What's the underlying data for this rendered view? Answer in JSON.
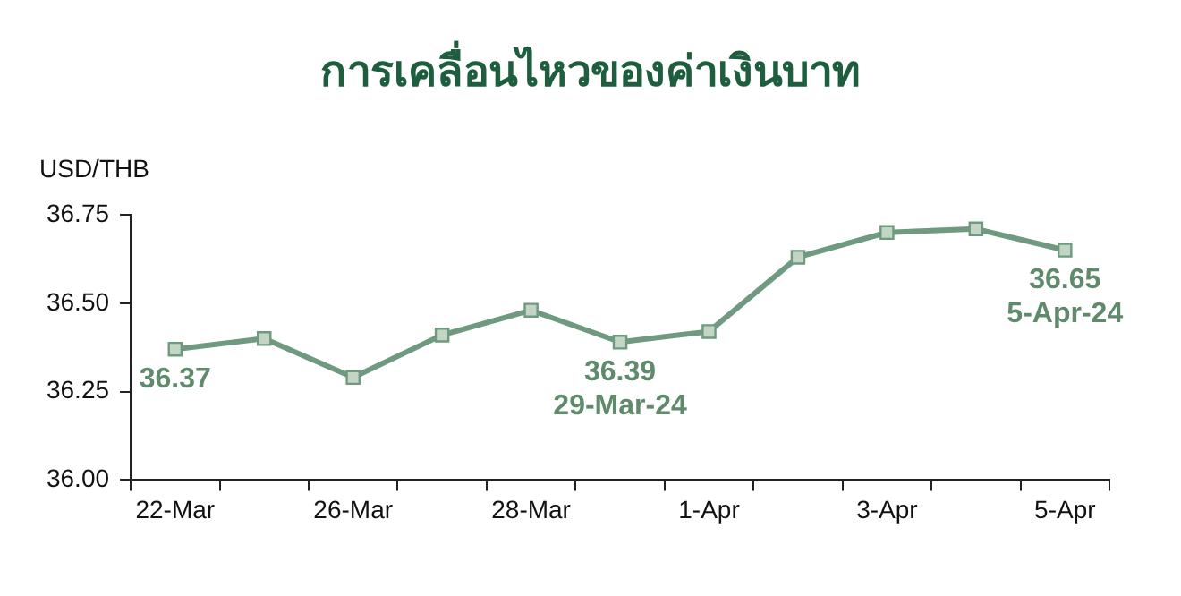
{
  "chart_data": {
    "type": "line",
    "title": "การเคลื่อนไหวของค่าเงินบาท",
    "ylabel": "USD/THB",
    "categories": [
      "22-Mar",
      null,
      "26-Mar",
      null,
      "28-Mar",
      null,
      "1-Apr",
      null,
      "3-Apr",
      null,
      "5-Apr"
    ],
    "series": [
      {
        "color": "#6f9a80",
        "values": [
          36.37,
          36.4,
          36.29,
          36.41,
          36.48,
          36.39,
          36.42,
          36.63,
          36.7,
          36.71,
          36.65
        ]
      }
    ],
    "ylim": [
      36.0,
      36.75
    ],
    "yticks": [
      {
        "value": 36.0,
        "label": "36.00"
      },
      {
        "value": 36.25,
        "label": "36.25"
      },
      {
        "value": 36.5,
        "label": "36.50"
      },
      {
        "value": 36.75,
        "label": "36.75"
      }
    ],
    "marker": "square",
    "grid": false,
    "legend": false,
    "annotations": [
      {
        "text": "36.37",
        "x": "22-Mar",
        "y": 36.37
      },
      {
        "text": "36.39\n29-Mar-24",
        "y": 36.39
      },
      {
        "text": "36.65\n5-Apr-24",
        "x": "5-Apr",
        "y": 36.65
      }
    ]
  }
}
